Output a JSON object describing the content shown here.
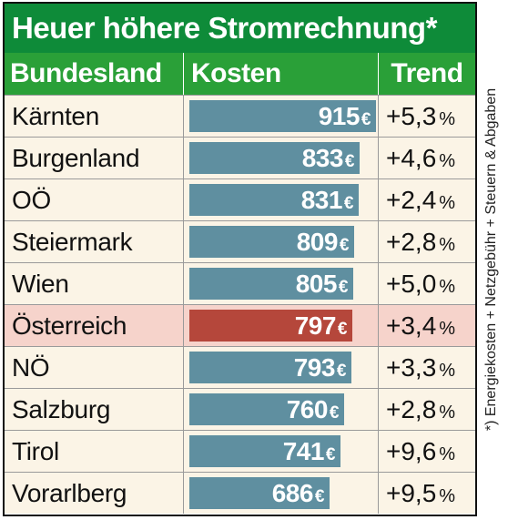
{
  "title": "Heuer höhere Stromrechnung*",
  "headers": {
    "state": "Bundesland",
    "cost": "Kosten",
    "trend": "Trend"
  },
  "currency": "€",
  "percent": "%",
  "footnote": "*) Energiekosten + Netzgebühr + Steuern & Abgaben",
  "colors": {
    "title_bg": "#0e8b39",
    "header_bg": "#2aa038",
    "bar": "#5f8fa0",
    "bar_highlight": "#b5473b",
    "row_bg": "#fbf4e6",
    "row_highlight_bg": "#f6d3cb"
  },
  "chart_data": {
    "type": "table",
    "title": "Heuer höhere Stromrechnung*",
    "columns": [
      "Bundesland",
      "Kosten",
      "Trend"
    ],
    "highlight": "Österreich",
    "rows": [
      {
        "state": "Kärnten",
        "cost": 915,
        "cost_label": "915",
        "trend": "+5,3"
      },
      {
        "state": "Burgenland",
        "cost": 833,
        "cost_label": "833",
        "trend": "+4,6"
      },
      {
        "state": "OÖ",
        "cost": 831,
        "cost_label": "831",
        "trend": "+2,4"
      },
      {
        "state": "Steiermark",
        "cost": 809,
        "cost_label": "809",
        "trend": "+2,8"
      },
      {
        "state": "Wien",
        "cost": 805,
        "cost_label": "805",
        "trend": "+5,0"
      },
      {
        "state": "Österreich",
        "cost": 797,
        "cost_label": "797",
        "trend": "+3,4"
      },
      {
        "state": "NÖ",
        "cost": 793,
        "cost_label": "793",
        "trend": "+3,3"
      },
      {
        "state": "Salzburg",
        "cost": 760,
        "cost_label": "760",
        "trend": "+2,8"
      },
      {
        "state": "Tirol",
        "cost": 741,
        "cost_label": "741",
        "trend": "+9,6"
      },
      {
        "state": "Vorarlberg",
        "cost": 686,
        "cost_label": "686",
        "trend": "+9,5"
      }
    ]
  }
}
